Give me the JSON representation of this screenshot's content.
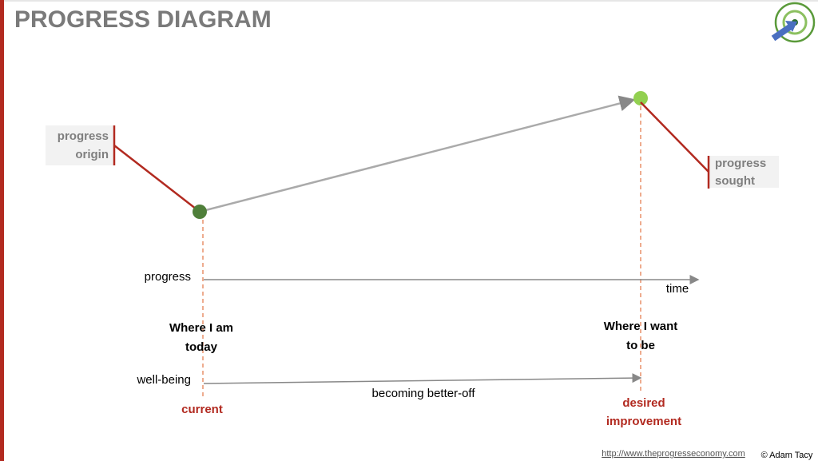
{
  "header": {
    "title": "PROGRESS DIAGRAM"
  },
  "labels": {
    "origin": [
      "progress",
      "origin"
    ],
    "sought": [
      "progress",
      "sought"
    ],
    "progress_axis": "progress",
    "time": "time",
    "today": [
      "Where I am",
      "today"
    ],
    "want": [
      "Where I want",
      "to be"
    ],
    "wellbeing_axis": "well-being",
    "better_off": "becoming better-off",
    "current": "current",
    "desired": [
      "desired",
      "improvement"
    ]
  },
  "footer": {
    "link": "http://www.theprogresseconomy.com",
    "credit": "© Adam Tacy"
  }
}
